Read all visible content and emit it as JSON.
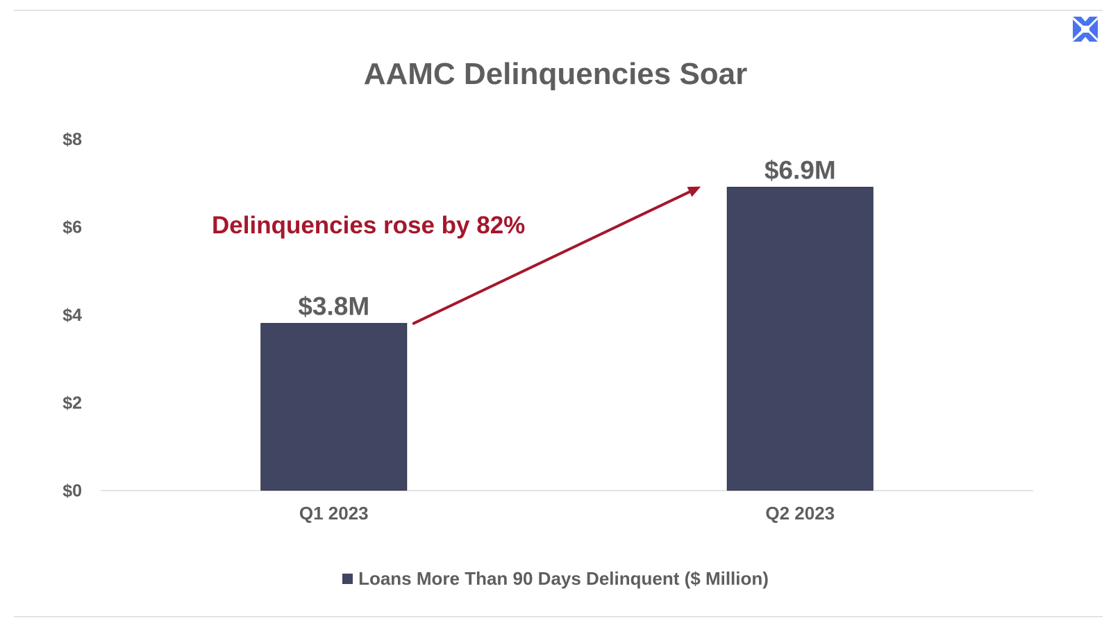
{
  "brand": {
    "logo_icon": "x-logo-icon",
    "logo_color": "#4a73f0"
  },
  "chart_data": {
    "type": "bar",
    "title": "AAMC Delinquencies Soar",
    "categories": [
      "Q1 2023",
      "Q2 2023"
    ],
    "series": [
      {
        "name": "Loans More Than 90 Days Delinquent ($ Million)",
        "values": [
          3.8,
          6.9
        ],
        "data_labels": [
          "$3.8M",
          "$6.9M"
        ],
        "color": "#404561"
      }
    ],
    "ylim": [
      0,
      8
    ],
    "yticks": [
      0,
      2,
      4,
      6,
      8
    ],
    "ytick_labels": [
      "$0",
      "$2",
      "$4",
      "$6",
      "$8"
    ],
    "xlabel": "",
    "ylabel": "",
    "grid": false,
    "legend_position": "bottom",
    "annotation": {
      "text": "Delinquencies rose by 82%",
      "color": "#a5172b",
      "arrow_from": "Q1 2023",
      "arrow_to": "Q2 2023"
    }
  }
}
